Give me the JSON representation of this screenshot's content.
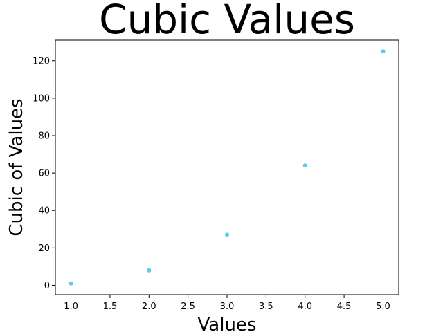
{
  "chart_data": {
    "type": "scatter",
    "title": "Cubic Values",
    "xlabel": "Values",
    "ylabel": "Cubic of Values",
    "x": [
      1,
      2,
      3,
      4,
      5
    ],
    "y": [
      1,
      8,
      27,
      64,
      125
    ],
    "xlim": [
      0.8,
      5.2
    ],
    "ylim": [
      -5,
      131
    ],
    "x_ticks": [
      1.0,
      1.5,
      2.0,
      2.5,
      3.0,
      3.5,
      4.0,
      4.5,
      5.0
    ],
    "x_tick_labels": [
      "1.0",
      "1.5",
      "2.0",
      "2.5",
      "3.0",
      "3.5",
      "4.0",
      "4.5",
      "5.0"
    ],
    "y_ticks": [
      0,
      20,
      40,
      60,
      80,
      100,
      120
    ],
    "y_tick_labels": [
      "0",
      "20",
      "40",
      "60",
      "80",
      "100",
      "120"
    ],
    "marker_color": "#5bc8f5",
    "grid": false,
    "legend": false
  }
}
